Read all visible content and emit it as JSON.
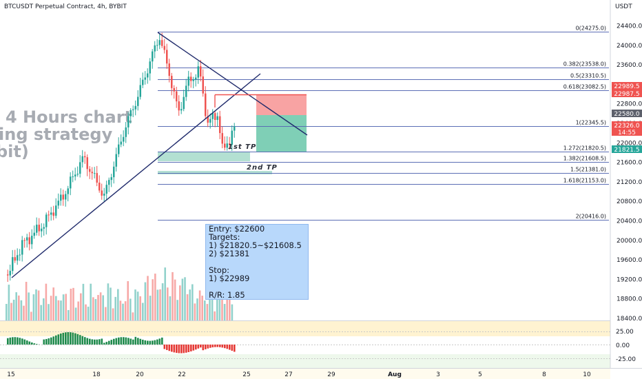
{
  "header": {
    "title": "BTCUSDT Perpetual Contract, 4h, BYBIT",
    "currency": "USDT"
  },
  "watermark": {
    "line1": "4 Hours chart",
    "line2": "ing strategy",
    "line3": "bit)"
  },
  "note": {
    "lines": [
      "Entry: $22600",
      "Targets:",
      "1) $21820.5~$21608.5",
      "2) $21381",
      "",
      "Stop:",
      "1) $22989",
      "",
      "R/R: 1.85"
    ]
  },
  "tp_labels": {
    "first": "1st TP",
    "second": "2nd TP"
  },
  "colors": {
    "bull": "#26a69a",
    "bear": "#ef5350",
    "trend": "#1f2a6b",
    "fib": "#5b6db5",
    "note_bg": "#b8d8fb",
    "stop_zone": "#f8a3a3",
    "target_zone": "#7fcfb6",
    "tp_zone": "#b3e0d2"
  },
  "chart_data": {
    "type": "candlestick",
    "title": "BTCUSDT Perpetual Contract, 4h, BYBIT",
    "y_axis": {
      "unit": "USDT",
      "ticks": [
        "24400.0",
        "24000.0",
        "23600.0",
        "23200.0",
        "22800.0",
        "22400.0",
        "22000.0",
        "21600.0",
        "21200.0",
        "20800.0",
        "20400.0",
        "20000.0",
        "19600.0",
        "19200.0",
        "18800.0",
        "18400.0"
      ]
    },
    "x_axis": {
      "ticks": [
        "15",
        "18",
        "20",
        "22",
        "25",
        "27",
        "29",
        "Aug",
        "3",
        "5",
        "8",
        "10"
      ]
    },
    "price_badges": [
      {
        "text": "22989.5",
        "color": "#ef5350"
      },
      {
        "text": "22987.5",
        "color": "#ef5350"
      },
      {
        "text": "22580.0",
        "color": "#5d606b"
      },
      {
        "text": "22326.0",
        "color": "#ef5350"
      },
      {
        "text": "14:55",
        "color": "#ef5350"
      },
      {
        "text": "21821.5",
        "color": "#26a69a"
      }
    ],
    "fib_levels": [
      {
        "label": "0(24275.0)",
        "price": 24275
      },
      {
        "label": "0.382(23538.0)",
        "price": 23538
      },
      {
        "label": "0.5(23310.5)",
        "price": 23310.5
      },
      {
        "label": "0.618(23082.5)",
        "price": 23082.5
      },
      {
        "label": "1(22345.5)",
        "price": 22345.5
      },
      {
        "label": "1.272(21820.5)",
        "price": 21820.5
      },
      {
        "label": "1.382(21608.5)",
        "price": 21608.5
      },
      {
        "label": "1.5(21381.0)",
        "price": 21381
      },
      {
        "label": "1.618(21153.0)",
        "price": 21153
      },
      {
        "label": "2(20416.0)",
        "price": 20416
      }
    ],
    "oscillator": {
      "ticks": [
        "25.00",
        "0.00",
        "-25.00"
      ]
    }
  }
}
